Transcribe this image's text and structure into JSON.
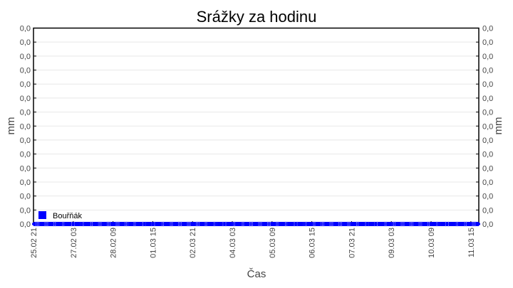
{
  "chart_data": {
    "type": "line",
    "title": "Srážky za hodinu",
    "xlabel": "Čas",
    "ylabel": "mm",
    "ylabel_right": "mm",
    "x_tick_labels": [
      "25.02 21",
      "27.02 03",
      "28.02 09",
      "01.03 15",
      "02.03 21",
      "04.03 03",
      "05.03 09",
      "06.03 15",
      "07.03 21",
      "09.03 03",
      "10.03 09",
      "11.03 15"
    ],
    "y_tick_labels": [
      "0,0",
      "0,0",
      "0,0",
      "0,0",
      "0,0",
      "0,0",
      "0,0",
      "0,0",
      "0,0",
      "0,0",
      "0,0",
      "0,0",
      "0,0",
      "0,0",
      "0,0"
    ],
    "grid": true,
    "legend_position": "bottom-left",
    "series": [
      {
        "name": "Bouřňák",
        "color": "#0000ff",
        "x_step_hours": 6,
        "x_start": "25.02 21",
        "values": [
          0,
          0,
          0,
          0,
          0,
          0,
          0,
          0,
          0,
          0,
          0,
          0,
          0,
          0,
          0,
          0,
          0,
          0,
          0,
          0,
          0,
          0,
          0,
          0,
          0,
          0,
          0,
          0,
          0,
          0,
          0,
          0,
          0,
          0,
          0,
          0,
          0,
          0,
          0,
          0,
          0,
          0,
          0,
          0,
          0,
          0,
          0,
          0,
          0,
          0,
          0,
          0,
          0,
          0,
          0,
          0,
          0
        ]
      }
    ]
  }
}
